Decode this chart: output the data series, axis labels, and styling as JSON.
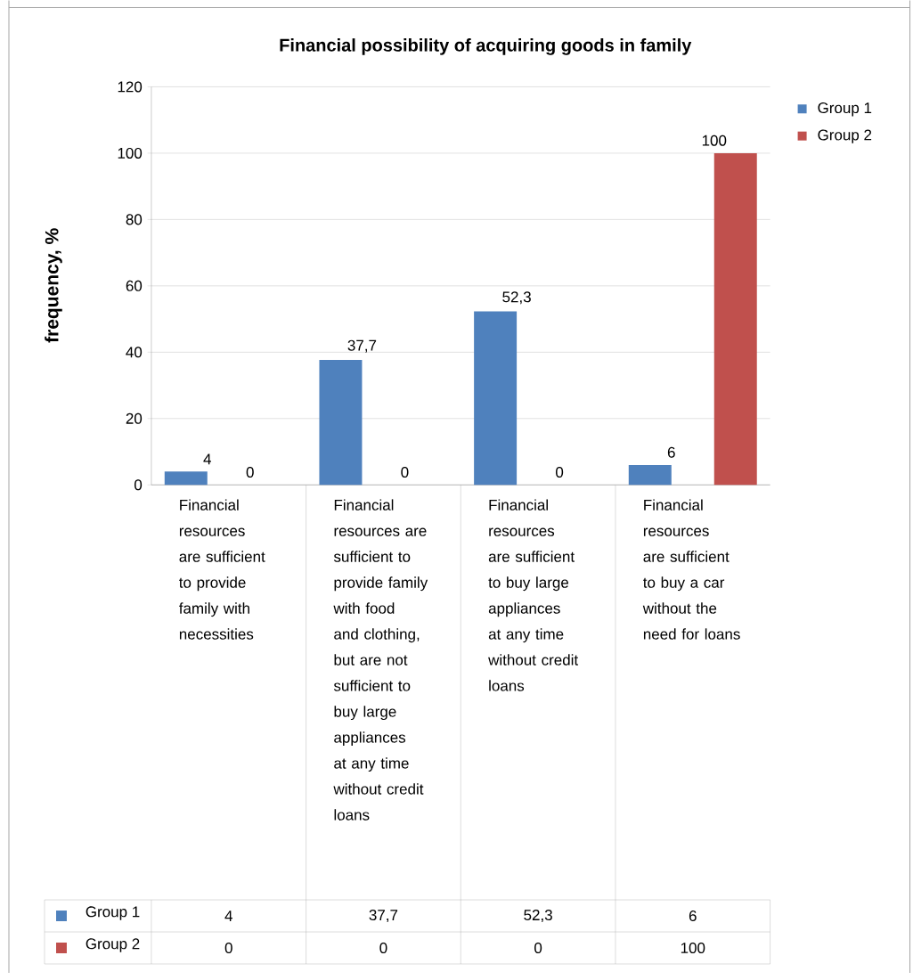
{
  "chart_data": {
    "type": "bar",
    "title": "Financial possibility of acquiring goods in family",
    "ylabel": "frequency, %",
    "categories": [
      "Financial resources are sufficient to provide family with necessities",
      "Financial resources are sufficient to provide family with food and clothing, but are not sufficient to buy large appliances at any time without credit loans",
      "Financial resources are sufficient to buy large appliances at any time without credit loans",
      "Financial resources are sufficient to buy a car without the need for loans"
    ],
    "series": [
      {
        "name": "Group 1",
        "color": "#4f81bd",
        "values": [
          4,
          37.7,
          52.3,
          6
        ],
        "value_labels": [
          "4",
          "37,7",
          "52,3",
          "6"
        ]
      },
      {
        "name": "Group 2",
        "color": "#c0504d",
        "values": [
          0,
          0,
          0,
          100
        ],
        "value_labels": [
          "0",
          "0",
          "0",
          "100"
        ]
      }
    ],
    "ylim": [
      0,
      120
    ],
    "yticks": [
      0,
      20,
      40,
      60,
      80,
      100,
      120
    ],
    "grid": "y",
    "legend": "right"
  }
}
